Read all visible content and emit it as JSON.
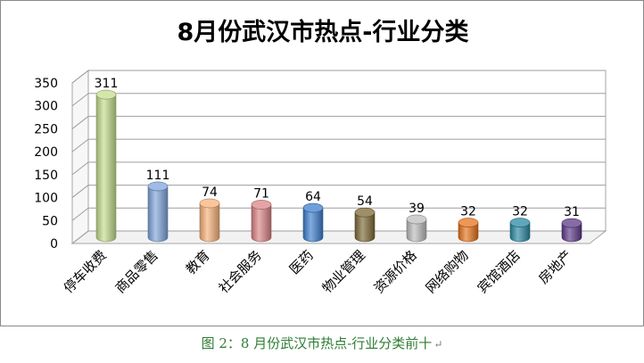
{
  "chart_data": {
    "type": "bar",
    "title": "8月份武汉市热点-行业分类",
    "categories": [
      "停车收费",
      "商品零售",
      "教育",
      "社会服务",
      "医药",
      "物业管理",
      "资源价格",
      "网络购物",
      "宾馆酒店",
      "房地产"
    ],
    "values": [
      311,
      111,
      74,
      71,
      64,
      54,
      39,
      32,
      32,
      31
    ],
    "data_labels": [
      "311",
      "111",
      "74",
      "71",
      "64",
      "54",
      "39",
      "32",
      "32",
      "31"
    ],
    "colors": [
      "#c5dd8c",
      "#7fa6dc",
      "#f8b27a",
      "#dc8486",
      "#3d7fcf",
      "#7d6a36",
      "#bdbdbd",
      "#e8731c",
      "#2a8aa3",
      "#5e3a8a"
    ],
    "ylim": [
      0,
      350
    ],
    "yticks": [
      "0",
      "50",
      "100",
      "150",
      "200",
      "250",
      "300",
      "350"
    ],
    "grid": true,
    "legend": "none",
    "style": "3d-cylinder"
  },
  "caption": {
    "text": "图 2：8 月份武汉市热点-行业分类前十",
    "mark": "↵"
  }
}
